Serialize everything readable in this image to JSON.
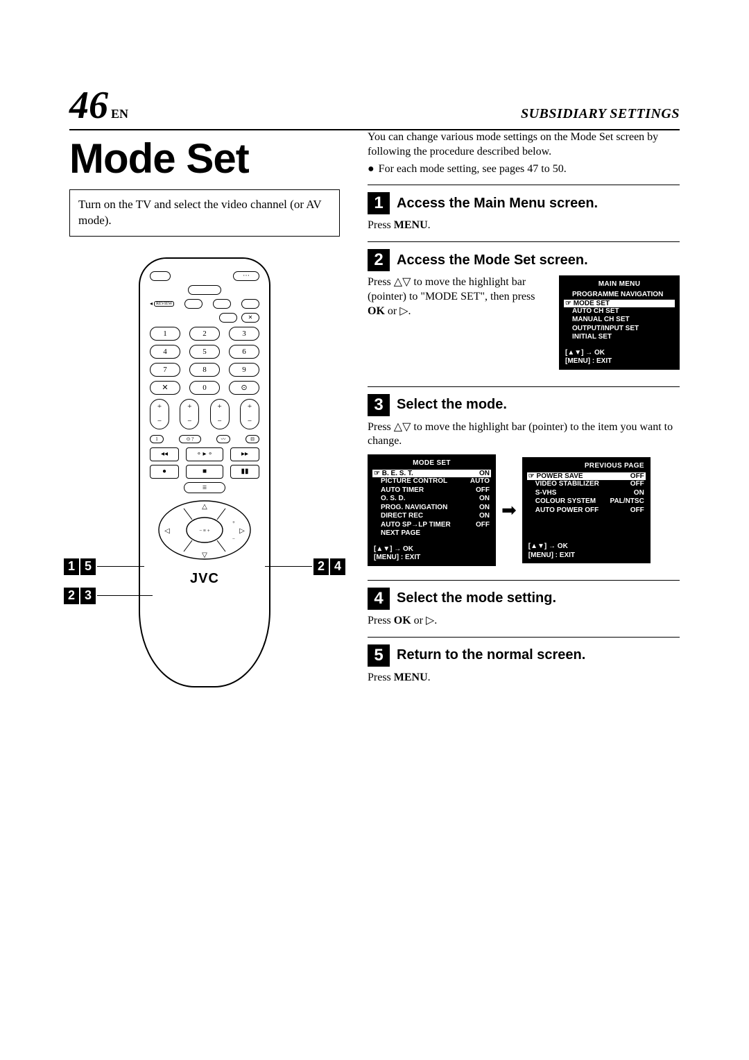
{
  "page_number": "46",
  "page_lang": "EN",
  "section_header": "SUBSIDIARY SETTINGS",
  "main_title": "Mode Set",
  "left_note": "Turn on the TV and select the video channel (or AV mode).",
  "intro_line1": "You can change various mode settings on the Mode Set screen by following the procedure described below.",
  "intro_bullet": "For each mode setting, see pages 47 to 50.",
  "steps": {
    "s1": {
      "num": "1",
      "title": "Access the Main Menu screen.",
      "body_pre": "Press ",
      "body_bold": "MENU",
      "body_post": "."
    },
    "s2": {
      "num": "2",
      "title": "Access the Mode Set screen.",
      "body": "Press △▽ to move the highlight bar (pointer) to \"MODE SET\", then press ",
      "body_bold": "OK",
      "body_post": " or ▷."
    },
    "s3": {
      "num": "3",
      "title": "Select the mode.",
      "body": "Press △▽ to move the highlight bar (pointer) to the item you want to change."
    },
    "s4": {
      "num": "4",
      "title": "Select the mode setting.",
      "body_pre": "Press ",
      "body_bold": "OK",
      "body_post": " or ▷."
    },
    "s5": {
      "num": "5",
      "title": "Return to the normal screen.",
      "body_pre": "Press ",
      "body_bold": "MENU",
      "body_post": "."
    }
  },
  "main_menu_osd": {
    "title": "MAIN MENU",
    "items": [
      "PROGRAMME NAVIGATION",
      "MODE SET",
      "AUTO CH SET",
      "MANUAL CH SET",
      "OUTPUT/INPUT SET",
      "INITIAL SET"
    ],
    "highlight_index": 1,
    "footer1": "[▲▼] → OK",
    "footer2": "[MENU] : EXIT"
  },
  "mode_set_osd": {
    "title": "MODE SET",
    "rows": [
      {
        "label": "B. E. S. T.",
        "value": "ON",
        "highlight": true
      },
      {
        "label": "PICTURE CONTROL",
        "value": "AUTO"
      },
      {
        "label": "AUTO TIMER",
        "value": "OFF"
      },
      {
        "label": "O. S. D.",
        "value": "ON"
      },
      {
        "label": "PROG. NAVIGATION",
        "value": "ON"
      },
      {
        "label": "DIRECT REC",
        "value": "ON"
      },
      {
        "label": "AUTO SP→LP TIMER",
        "value": "OFF"
      },
      {
        "label": "NEXT PAGE",
        "value": ""
      }
    ],
    "footer1": "[▲▼] → OK",
    "footer2": "[MENU] : EXIT"
  },
  "prev_page_osd": {
    "title": "PREVIOUS PAGE",
    "rows": [
      {
        "label": "POWER SAVE",
        "value": "OFF",
        "highlight": true
      },
      {
        "label": "VIDEO STABILIZER",
        "value": "OFF"
      },
      {
        "label": "S-VHS",
        "value": "ON"
      },
      {
        "label": "COLOUR SYSTEM",
        "value": "PAL/NTSC"
      },
      {
        "label": "AUTO POWER OFF",
        "value": "OFF"
      }
    ],
    "footer1": "[▲▼] → OK",
    "footer2": "[MENU] : EXIT"
  },
  "remote": {
    "brand": "JVC",
    "num_keys": [
      [
        "1",
        "2",
        "3"
      ],
      [
        "4",
        "5",
        "6"
      ],
      [
        "7",
        "8",
        "9"
      ],
      [
        "✕",
        "0",
        "⊙"
      ]
    ],
    "review_label": "REVIEW",
    "menu_label": "☰"
  },
  "callouts": {
    "left_top": [
      "1",
      "5"
    ],
    "left_bottom": [
      "2",
      "3"
    ],
    "right": [
      "2",
      "4"
    ]
  },
  "colors": {
    "text": "#000000",
    "bg": "#ffffff",
    "osd_bg": "#000000",
    "osd_fg": "#ffffff"
  }
}
